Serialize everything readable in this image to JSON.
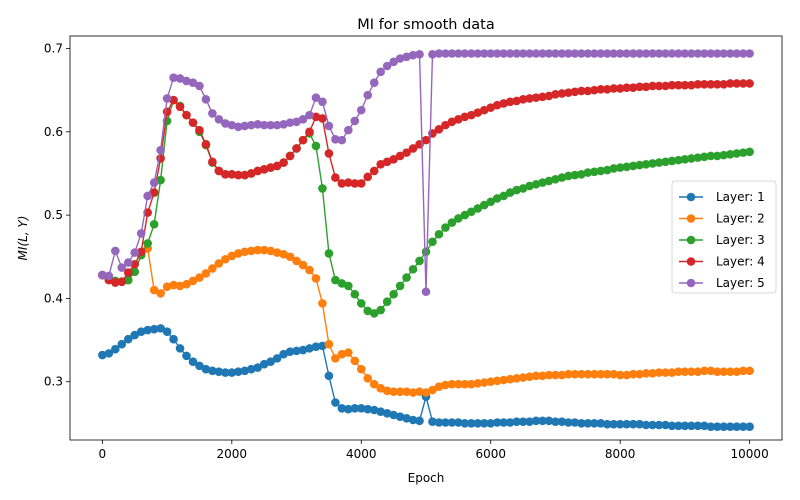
{
  "chart_data": {
    "type": "line",
    "title": "MI for smooth data",
    "xlabel": "Epoch",
    "ylabel": "MI(L, Y)",
    "xlim": [
      -500,
      10500
    ],
    "ylim": [
      0.23,
      0.715
    ],
    "xticks": [
      0,
      2000,
      4000,
      6000,
      8000,
      10000
    ],
    "xtick_labels": [
      "0",
      "2000",
      "4000",
      "6000",
      "8000",
      "10000"
    ],
    "yticks": [
      0.3,
      0.4,
      0.5,
      0.6,
      0.7
    ],
    "ytick_labels": [
      "0.3",
      "0.4",
      "0.5",
      "0.6",
      "0.7"
    ],
    "grid": false,
    "legend_position": "center-right",
    "x": [
      0,
      100,
      200,
      300,
      400,
      500,
      600,
      700,
      800,
      900,
      1000,
      1100,
      1200,
      1300,
      1400,
      1500,
      1600,
      1700,
      1800,
      1900,
      2000,
      2100,
      2200,
      2300,
      2400,
      2500,
      2600,
      2700,
      2800,
      2900,
      3000,
      3100,
      3200,
      3300,
      3400,
      3500,
      3600,
      3700,
      3800,
      3900,
      4000,
      4100,
      4200,
      4300,
      4400,
      4500,
      4600,
      4700,
      4800,
      4900,
      5000,
      5100,
      5200,
      5300,
      5400,
      5500,
      5600,
      5700,
      5800,
      5900,
      6000,
      6100,
      6200,
      6300,
      6400,
      6500,
      6600,
      6700,
      6800,
      6900,
      7000,
      7100,
      7200,
      7300,
      7400,
      7500,
      7600,
      7700,
      7800,
      7900,
      8000,
      8100,
      8200,
      8300,
      8400,
      8500,
      8600,
      8700,
      8800,
      8900,
      9000,
      9100,
      9200,
      9300,
      9400,
      9500,
      9600,
      9700,
      9800,
      9900,
      10000
    ],
    "series": [
      {
        "name": "Layer: 1",
        "color": "#1f77b4",
        "values": [
          0.332,
          0.334,
          0.339,
          0.345,
          0.351,
          0.356,
          0.36,
          0.362,
          0.363,
          0.364,
          0.36,
          0.351,
          0.34,
          0.331,
          0.324,
          0.319,
          0.315,
          0.313,
          0.312,
          0.311,
          0.311,
          0.312,
          0.313,
          0.315,
          0.317,
          0.321,
          0.324,
          0.328,
          0.333,
          0.336,
          0.337,
          0.338,
          0.34,
          0.342,
          0.343,
          0.307,
          0.275,
          0.268,
          0.267,
          0.268,
          0.268,
          0.267,
          0.266,
          0.264,
          0.262,
          0.26,
          0.258,
          0.256,
          0.254,
          0.253,
          0.282,
          0.252,
          0.251,
          0.251,
          0.251,
          0.251,
          0.25,
          0.25,
          0.25,
          0.25,
          0.25,
          0.251,
          0.251,
          0.251,
          0.252,
          0.252,
          0.252,
          0.253,
          0.253,
          0.253,
          0.252,
          0.252,
          0.251,
          0.251,
          0.25,
          0.25,
          0.25,
          0.25,
          0.249,
          0.249,
          0.249,
          0.249,
          0.249,
          0.249,
          0.248,
          0.248,
          0.248,
          0.248,
          0.247,
          0.247,
          0.247,
          0.247,
          0.247,
          0.247,
          0.246,
          0.246,
          0.246,
          0.246,
          0.246,
          0.246,
          0.246
        ]
      },
      {
        "name": "Layer: 2",
        "color": "#ff7f0e",
        "values": [
          0.428,
          0.425,
          0.421,
          0.42,
          0.422,
          0.432,
          0.452,
          0.46,
          0.41,
          0.406,
          0.414,
          0.416,
          0.415,
          0.417,
          0.421,
          0.425,
          0.43,
          0.436,
          0.442,
          0.447,
          0.451,
          0.454,
          0.456,
          0.457,
          0.458,
          0.458,
          0.457,
          0.455,
          0.453,
          0.45,
          0.445,
          0.44,
          0.434,
          0.424,
          0.394,
          0.345,
          0.328,
          0.333,
          0.335,
          0.325,
          0.315,
          0.304,
          0.297,
          0.292,
          0.289,
          0.288,
          0.288,
          0.288,
          0.287,
          0.288,
          0.287,
          0.29,
          0.294,
          0.296,
          0.297,
          0.297,
          0.297,
          0.297,
          0.298,
          0.299,
          0.3,
          0.301,
          0.302,
          0.303,
          0.304,
          0.305,
          0.306,
          0.307,
          0.307,
          0.308,
          0.308,
          0.308,
          0.309,
          0.309,
          0.309,
          0.309,
          0.309,
          0.309,
          0.309,
          0.309,
          0.308,
          0.308,
          0.309,
          0.309,
          0.31,
          0.31,
          0.311,
          0.311,
          0.311,
          0.312,
          0.312,
          0.312,
          0.312,
          0.313,
          0.313,
          0.312,
          0.312,
          0.312,
          0.312,
          0.313,
          0.313
        ]
      },
      {
        "name": "Layer: 3",
        "color": "#2ca02c",
        "values": [
          0.428,
          0.425,
          0.421,
          0.42,
          0.422,
          0.432,
          0.452,
          0.466,
          0.489,
          0.542,
          0.613,
          0.638,
          0.631,
          0.62,
          0.611,
          0.6,
          0.584,
          0.563,
          0.553,
          0.549,
          0.549,
          0.548,
          0.548,
          0.55,
          0.553,
          0.555,
          0.557,
          0.559,
          0.563,
          0.571,
          0.58,
          0.59,
          0.598,
          0.583,
          0.532,
          0.454,
          0.422,
          0.418,
          0.415,
          0.405,
          0.394,
          0.385,
          0.382,
          0.386,
          0.396,
          0.405,
          0.415,
          0.425,
          0.435,
          0.445,
          0.456,
          0.468,
          0.477,
          0.485,
          0.491,
          0.496,
          0.5,
          0.504,
          0.508,
          0.512,
          0.516,
          0.52,
          0.523,
          0.527,
          0.53,
          0.532,
          0.535,
          0.537,
          0.539,
          0.541,
          0.543,
          0.545,
          0.547,
          0.548,
          0.549,
          0.551,
          0.552,
          0.553,
          0.554,
          0.556,
          0.557,
          0.558,
          0.559,
          0.56,
          0.561,
          0.562,
          0.563,
          0.564,
          0.565,
          0.566,
          0.567,
          0.568,
          0.569,
          0.57,
          0.571,
          0.571,
          0.572,
          0.573,
          0.574,
          0.575,
          0.576
        ]
      },
      {
        "name": "Layer: 4",
        "color": "#d62728",
        "values": [
          0.428,
          0.422,
          0.419,
          0.42,
          0.431,
          0.441,
          0.456,
          0.503,
          0.527,
          0.568,
          0.624,
          0.638,
          0.63,
          0.62,
          0.611,
          0.602,
          0.585,
          0.564,
          0.553,
          0.549,
          0.549,
          0.548,
          0.548,
          0.55,
          0.553,
          0.555,
          0.557,
          0.559,
          0.563,
          0.571,
          0.58,
          0.59,
          0.6,
          0.618,
          0.616,
          0.574,
          0.545,
          0.538,
          0.539,
          0.538,
          0.538,
          0.546,
          0.553,
          0.561,
          0.564,
          0.567,
          0.571,
          0.575,
          0.58,
          0.585,
          0.59,
          0.598,
          0.603,
          0.608,
          0.612,
          0.615,
          0.618,
          0.62,
          0.623,
          0.626,
          0.629,
          0.632,
          0.634,
          0.636,
          0.637,
          0.639,
          0.64,
          0.641,
          0.642,
          0.643,
          0.645,
          0.646,
          0.647,
          0.648,
          0.649,
          0.649,
          0.65,
          0.651,
          0.651,
          0.652,
          0.652,
          0.653,
          0.653,
          0.654,
          0.654,
          0.655,
          0.655,
          0.655,
          0.656,
          0.656,
          0.656,
          0.656,
          0.657,
          0.657,
          0.657,
          0.657,
          0.657,
          0.658,
          0.658,
          0.658,
          0.658
        ]
      },
      {
        "name": "Layer: 5",
        "color": "#9467bd",
        "values": [
          0.428,
          0.427,
          0.457,
          0.437,
          0.443,
          0.455,
          0.478,
          0.523,
          0.539,
          0.578,
          0.64,
          0.665,
          0.664,
          0.661,
          0.659,
          0.655,
          0.639,
          0.622,
          0.615,
          0.61,
          0.608,
          0.606,
          0.607,
          0.608,
          0.609,
          0.608,
          0.608,
          0.608,
          0.609,
          0.611,
          0.612,
          0.615,
          0.62,
          0.641,
          0.636,
          0.607,
          0.591,
          0.59,
          0.602,
          0.613,
          0.626,
          0.644,
          0.659,
          0.672,
          0.679,
          0.684,
          0.688,
          0.69,
          0.692,
          0.693,
          0.408,
          0.693,
          0.694,
          0.694,
          0.694,
          0.694,
          0.694,
          0.694,
          0.694,
          0.694,
          0.694,
          0.694,
          0.694,
          0.694,
          0.694,
          0.694,
          0.694,
          0.694,
          0.694,
          0.694,
          0.694,
          0.694,
          0.694,
          0.694,
          0.694,
          0.694,
          0.694,
          0.694,
          0.694,
          0.694,
          0.694,
          0.694,
          0.694,
          0.694,
          0.694,
          0.694,
          0.694,
          0.694,
          0.694,
          0.694,
          0.694,
          0.694,
          0.694,
          0.694,
          0.694,
          0.694,
          0.694,
          0.694,
          0.694,
          0.694,
          0.694
        ]
      }
    ]
  }
}
